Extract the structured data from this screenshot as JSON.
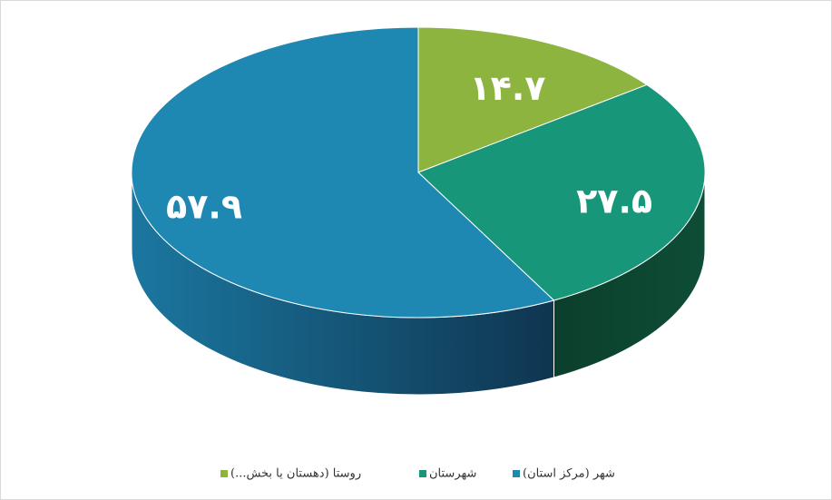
{
  "chart_data": {
    "type": "pie",
    "categories": [
      "شهر (مرکز استان)",
      "شهرستان",
      "روستا (دهستان یا بخش...)"
    ],
    "values": [
      57.9,
      27.5,
      14.7
    ],
    "value_labels": [
      "۵۷.۹",
      "۲۷.۵",
      "۱۴.۷"
    ],
    "colors": [
      "#1f88b2",
      "#17967a",
      "#8cb43f"
    ],
    "legend": "bottom"
  }
}
